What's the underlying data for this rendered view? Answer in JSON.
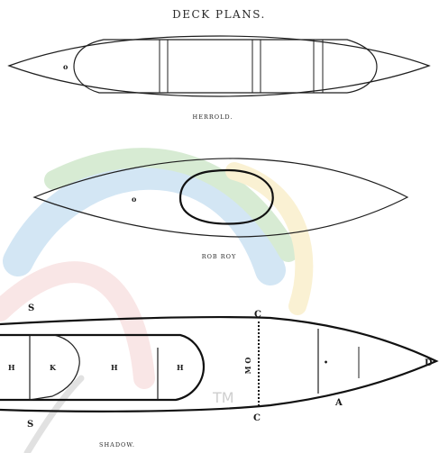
{
  "title": "DECK PLANS.",
  "watermark": {
    "text": "TM",
    "colors": [
      "#9ec9e8",
      "#a8d4a0",
      "#f3c9c9",
      "#f6e2a0"
    ]
  },
  "plans": [
    {
      "caption": "HERROLD.",
      "labels": {
        "mark": "o"
      }
    },
    {
      "caption": "ROB ROY",
      "labels": {
        "mark": "o"
      }
    },
    {
      "caption": "SHADOW.",
      "labels": {
        "s_top": "S",
        "s_bottom": "S",
        "c_top": "C",
        "c_bottom": "C",
        "h1": "H",
        "k": "K",
        "h2": "H",
        "h3": "H",
        "mo": "M O",
        "a": "A",
        "d": "D",
        "dot": "•"
      }
    }
  ]
}
